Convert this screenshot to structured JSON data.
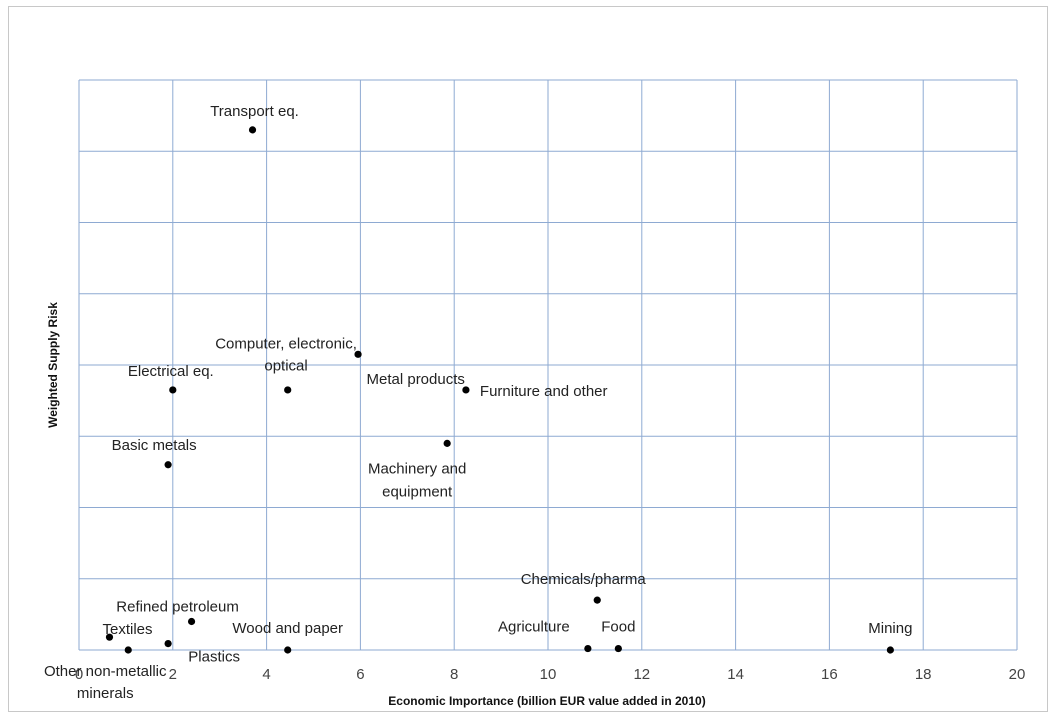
{
  "chart_data": {
    "type": "scatter",
    "title": "",
    "xlabel": "Economic Importance (billion EUR value added in 2010)",
    "ylabel": "Weighted Supply Risk",
    "xlim": [
      0,
      20
    ],
    "x_ticks": [
      "0",
      "2",
      "4",
      "6",
      "8",
      "10",
      "12",
      "14",
      "16",
      "18",
      "20"
    ],
    "y_tick_labels_shown": false,
    "grid": true,
    "marker_color": "#000000",
    "grid_color": "#8eaad2",
    "points": [
      {
        "label": "Transport eq.",
        "x": 3.7,
        "y": 0.73
      },
      {
        "label": "Computer, electronic, optical",
        "x": 5.95,
        "y": 0.415
      },
      {
        "label": "Electrical eq.",
        "x": 2.0,
        "y": 0.365
      },
      {
        "label": "Metal products",
        "x": 4.45,
        "y": 0.365
      },
      {
        "label": "Furniture and other",
        "x": 8.25,
        "y": 0.365
      },
      {
        "label": "Machinery and equipment",
        "x": 7.85,
        "y": 0.29
      },
      {
        "label": "Basic metals",
        "x": 1.9,
        "y": 0.26
      },
      {
        "label": "Chemicals/pharma",
        "x": 11.05,
        "y": 0.07
      },
      {
        "label": "Refined petroleum",
        "x": 2.4,
        "y": 0.04
      },
      {
        "label": "Textiles",
        "x": 0.65,
        "y": 0.018
      },
      {
        "label": "Plastics",
        "x": 1.9,
        "y": 0.009
      },
      {
        "label": "Other non-metallic minerals",
        "x": 1.05,
        "y": 0.0
      },
      {
        "label": "Wood and paper",
        "x": 4.45,
        "y": 0.0
      },
      {
        "label": "Agriculture",
        "x": 10.85,
        "y": 0.002
      },
      {
        "label": "Food",
        "x": 11.5,
        "y": 0.002
      },
      {
        "label": "Mining",
        "x": 17.3,
        "y": 0.0
      }
    ]
  }
}
